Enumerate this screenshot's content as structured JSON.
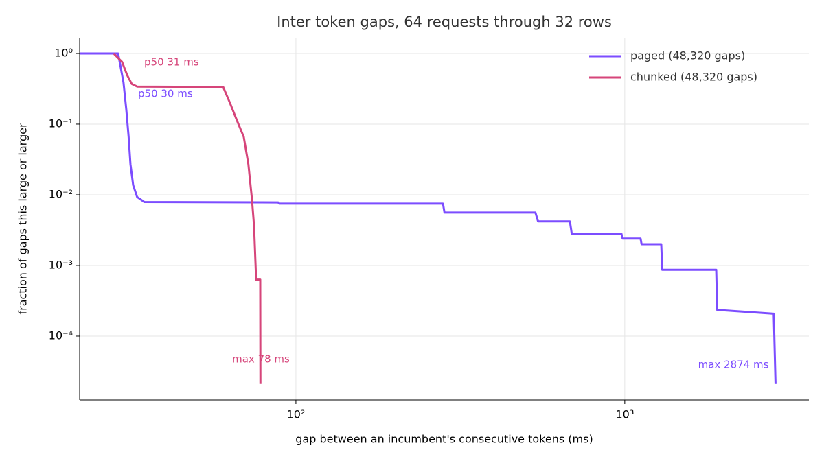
{
  "chart_data": {
    "type": "line",
    "title": "Inter token gaps, 64 requests through 32 rows",
    "xlabel": "gap between an incumbent's consecutive tokens (ms)",
    "ylabel": "fraction of gaps this large or larger",
    "xscale": "log",
    "yscale": "log",
    "xlim": [
      22,
      3630
    ],
    "ylim": [
      1.25e-05,
      1.67
    ],
    "xticks": [
      {
        "value": 100,
        "label": "10²"
      },
      {
        "value": 1000,
        "label": "10³"
      }
    ],
    "yticks": [
      {
        "value": 1,
        "label": "10⁰"
      },
      {
        "value": 0.1,
        "label": "10⁻¹"
      },
      {
        "value": 0.01,
        "label": "10⁻²"
      },
      {
        "value": 0.001,
        "label": "10⁻³"
      },
      {
        "value": 0.0001,
        "label": "10⁻⁴"
      }
    ],
    "grid": true,
    "legend": "upper right",
    "series": [
      {
        "name": "paged (48,320 gaps)",
        "color": "#7c4dff",
        "x": [
          22,
          28.8,
          29.9,
          30.5,
          31,
          31.4,
          32,
          32.9,
          34.6,
          88.3,
          89,
          280,
          283,
          535,
          545,
          681,
          690,
          977,
          985,
          1117,
          1125,
          1291,
          1300,
          1897,
          1910,
          2838,
          2874
        ],
        "values": [
          1,
          1,
          0.39,
          0.16,
          0.066,
          0.027,
          0.0137,
          0.0093,
          0.0079,
          0.0078,
          0.0075,
          0.0075,
          0.0056,
          0.0056,
          0.0042,
          0.0042,
          0.0028,
          0.0028,
          0.0024,
          0.0024,
          0.002,
          0.002,
          0.00087,
          0.00087,
          0.000235,
          0.000207,
          2.1e-05
        ]
      },
      {
        "name": "chunked (48,320 gaps)",
        "color": "#d6457a",
        "x": [
          27.9,
          29.6,
          30.7,
          31.7,
          32.9,
          60.1,
          63,
          66.1,
          69.4,
          71.7,
          73.5,
          74.6,
          75.3,
          75.7,
          77.9,
          78
        ],
        "values": [
          1,
          0.76,
          0.49,
          0.37,
          0.34,
          0.335,
          0.2,
          0.114,
          0.066,
          0.027,
          0.0087,
          0.0036,
          0.00117,
          0.00063,
          0.00063,
          2.1e-05
        ]
      }
    ],
    "annotations": [
      {
        "text": "p50 31 ms",
        "color": "#d6457a"
      },
      {
        "text": "p50 30 ms",
        "color": "#7c4dff"
      },
      {
        "text": "max 78 ms",
        "color": "#d6457a"
      },
      {
        "text": "max 2874 ms",
        "color": "#7c4dff"
      }
    ]
  }
}
